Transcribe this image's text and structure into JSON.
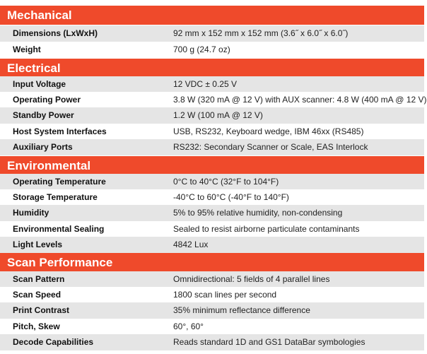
{
  "sections": [
    {
      "title": "Mechanical",
      "rows": [
        {
          "label": "Dimensions (LxWxH)",
          "value": "92 mm x 152 mm x 152 mm (3.6˝ x 6.0˝ x 6.0˝)"
        },
        {
          "label": "Weight",
          "value": "700 g (24.7 oz)"
        }
      ]
    },
    {
      "title": "Electrical",
      "rows": [
        {
          "label": "Input Voltage",
          "value": "12 VDC ± 0.25 V"
        },
        {
          "label": "Operating Power",
          "value": "3.8 W (320 mA @ 12 V) with AUX scanner: 4.8 W (400 mA @ 12 V)"
        },
        {
          "label": "Standby Power",
          "value": "1.2 W (100 mA @ 12 V)"
        },
        {
          "label": "Host System Interfaces",
          "value": "USB, RS232, Keyboard wedge, IBM 46xx (RS485)"
        },
        {
          "label": "Auxiliary Ports",
          "value": "RS232: Secondary Scanner or Scale, EAS Interlock"
        }
      ]
    },
    {
      "title": "Environmental",
      "rows": [
        {
          "label": "Operating Temperature",
          "value": "0°C to 40°C (32°F to 104°F)"
        },
        {
          "label": "Storage Temperature",
          "value": "-40°C to 60°C (-40°F to 140°F)"
        },
        {
          "label": "Humidity",
          "value": "5% to 95% relative humidity, non-condensing"
        },
        {
          "label": "Environmental Sealing",
          "value": "Sealed to resist airborne particulate contaminants"
        },
        {
          "label": "Light Levels",
          "value": "4842 Lux"
        }
      ]
    },
    {
      "title": "Scan Performance",
      "rows": [
        {
          "label": "Scan Pattern",
          "value": "Omnidirectional: 5 fields of 4 parallel lines"
        },
        {
          "label": "Scan Speed",
          "value": "1800 scan lines per second"
        },
        {
          "label": "Print Contrast",
          "value": "35% minimum reflectance difference"
        },
        {
          "label": "Pitch, Skew",
          "value": "60°, 60°"
        },
        {
          "label": "Decode Capabilities",
          "value": "Reads standard 1D and GS1 DataBar symbologies"
        }
      ]
    }
  ],
  "colors": {
    "header_bg": "#ef4a2b",
    "row_shade": "#e5e5e5"
  }
}
